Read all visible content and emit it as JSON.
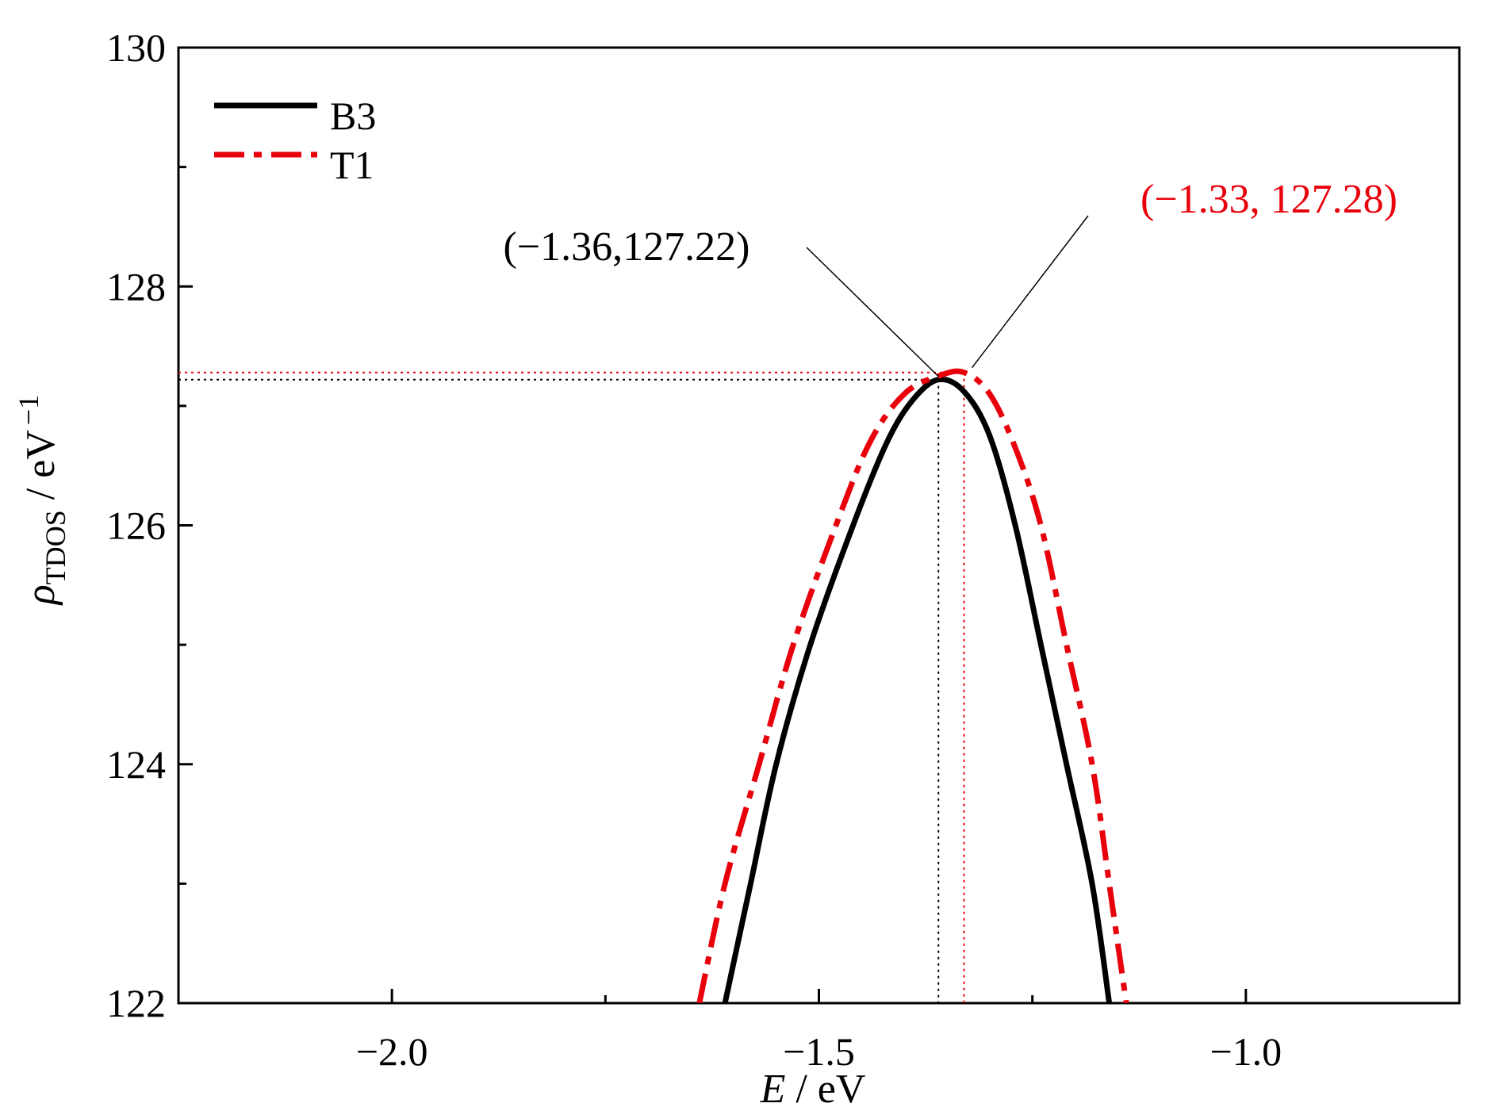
{
  "chart_data": {
    "type": "line",
    "xlabel": {
      "var": "E",
      "unit": " / eV"
    },
    "ylabel": {
      "var": "ρ",
      "sub": "TDOS",
      "unit": " / eV",
      "sup": "−1"
    },
    "xlim": [
      -2.25,
      -0.75
    ],
    "ylim": [
      122,
      130
    ],
    "x_ticks": [
      {
        "value": -2.0,
        "label": "−2.0"
      },
      {
        "value": -1.5,
        "label": "−1.5"
      },
      {
        "value": -1.0,
        "label": "−1.0"
      }
    ],
    "x_minor_ticks": [
      -1.75,
      -1.25
    ],
    "y_ticks": [
      {
        "value": 122,
        "label": "122"
      },
      {
        "value": 124,
        "label": "124"
      },
      {
        "value": 126,
        "label": "126"
      },
      {
        "value": 128,
        "label": "128"
      },
      {
        "value": 130,
        "label": "130"
      }
    ],
    "y_minor_ticks": [
      123,
      125,
      127,
      129
    ],
    "grid": false,
    "legend_position": "top-left",
    "series": [
      {
        "name": "B3",
        "color": "#000000",
        "style": "solid",
        "peak": {
          "x": -1.36,
          "y": 127.22
        },
        "points": [
          [
            -1.61,
            122.0
          ],
          [
            -1.58,
            123.0
          ],
          [
            -1.55,
            124.0
          ],
          [
            -1.51,
            125.0
          ],
          [
            -1.46,
            126.0
          ],
          [
            -1.42,
            126.7
          ],
          [
            -1.39,
            127.05
          ],
          [
            -1.36,
            127.22
          ],
          [
            -1.33,
            127.12
          ],
          [
            -1.3,
            126.75
          ],
          [
            -1.27,
            126.0
          ],
          [
            -1.24,
            125.0
          ],
          [
            -1.21,
            124.0
          ],
          [
            -1.18,
            123.0
          ],
          [
            -1.16,
            122.0
          ]
        ]
      },
      {
        "name": "T1",
        "color": "#e8000b",
        "style": "dashdot",
        "peak": {
          "x": -1.33,
          "y": 127.28
        },
        "points": [
          [
            -1.64,
            122.0
          ],
          [
            -1.61,
            123.0
          ],
          [
            -1.57,
            124.0
          ],
          [
            -1.53,
            125.0
          ],
          [
            -1.48,
            126.0
          ],
          [
            -1.44,
            126.7
          ],
          [
            -1.4,
            127.1
          ],
          [
            -1.36,
            127.25
          ],
          [
            -1.33,
            127.28
          ],
          [
            -1.3,
            127.1
          ],
          [
            -1.27,
            126.65
          ],
          [
            -1.24,
            126.0
          ],
          [
            -1.21,
            125.0
          ],
          [
            -1.18,
            124.0
          ],
          [
            -1.16,
            123.0
          ],
          [
            -1.14,
            122.0
          ]
        ]
      }
    ],
    "annotations": [
      {
        "text": "(−1.36,127.22)",
        "color": "#000000",
        "x": -1.36,
        "y": 127.22
      },
      {
        "text": "(−1.33, 127.28)",
        "color": "#e8000b",
        "x": -1.33,
        "y": 127.28
      }
    ]
  }
}
